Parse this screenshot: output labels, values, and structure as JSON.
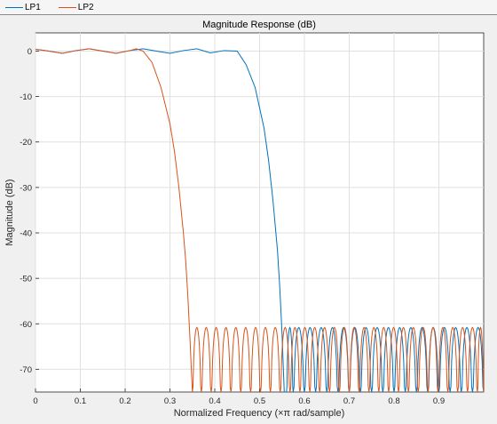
{
  "legend": {
    "items": [
      {
        "label": "LP1",
        "color": "#0072BD"
      },
      {
        "label": "LP2",
        "color": "#D95319"
      }
    ]
  },
  "chart_data": {
    "type": "line",
    "title": "Magnitude Response (dB)",
    "xlabel": "Normalized Frequency (×π rad/sample)",
    "ylabel": "Magnitude (dB)",
    "xlim": [
      0,
      1
    ],
    "ylim": [
      -75,
      4
    ],
    "xticks": [
      0,
      0.1,
      0.2,
      0.3,
      0.4,
      0.5,
      0.6,
      0.7,
      0.8,
      0.9
    ],
    "xtick_labels": [
      "0",
      "0.1",
      "0.2",
      "0.3",
      "0.4",
      "0.5",
      "0.6",
      "0.7",
      "0.8",
      "0.9"
    ],
    "yticks": [
      0,
      -10,
      -20,
      -30,
      -40,
      -50,
      -60,
      -70
    ],
    "ytick_labels": [
      "0",
      "-10",
      "-20",
      "-30",
      "-40",
      "-50",
      "-60",
      "-70"
    ],
    "grid": true,
    "series": [
      {
        "name": "LP1",
        "color": "#0072BD",
        "x": [
          0,
          0.03,
          0.06,
          0.09,
          0.12,
          0.15,
          0.18,
          0.21,
          0.24,
          0.27,
          0.3,
          0.33,
          0.36,
          0.39,
          0.42,
          0.45,
          0.47,
          0.49,
          0.51,
          0.52,
          0.53,
          0.54,
          0.545,
          0.55,
          0.555
        ],
        "y": [
          0.4,
          0.0,
          -0.5,
          0.1,
          0.5,
          0.0,
          -0.5,
          0.1,
          0.5,
          0.0,
          -0.5,
          0.1,
          0.5,
          -0.4,
          0.1,
          0.0,
          -3,
          -8,
          -17,
          -24,
          -33,
          -44,
          -52,
          -62,
          -75
        ]
      },
      {
        "name": "LP2",
        "color": "#D95319",
        "x": [
          0,
          0.03,
          0.06,
          0.09,
          0.12,
          0.15,
          0.18,
          0.21,
          0.225,
          0.24,
          0.26,
          0.28,
          0.3,
          0.31,
          0.32,
          0.33,
          0.335,
          0.34,
          0.345,
          0.35
        ],
        "y": [
          0.4,
          0.0,
          -0.5,
          0.1,
          0.5,
          0.0,
          -0.5,
          0.1,
          0.5,
          0.0,
          -2.5,
          -8,
          -16,
          -22,
          -30,
          -40,
          -46,
          -54,
          -64,
          -75
        ]
      }
    ],
    "stopband": {
      "level_db": -60.8,
      "LP1": {
        "start": 0.55,
        "nulls": [
          0.56,
          0.575,
          0.6,
          0.625,
          0.65,
          0.675,
          0.7,
          0.725,
          0.75,
          0.775,
          0.8,
          0.825,
          0.85,
          0.875,
          0.9,
          0.925,
          0.95,
          0.975
        ]
      },
      "LP2": {
        "start": 0.35,
        "nulls": [
          0.35,
          0.37,
          0.392,
          0.414,
          0.436,
          0.458,
          0.48,
          0.502,
          0.524,
          0.546,
          0.568,
          0.59,
          0.612,
          0.634,
          0.656,
          0.678,
          0.7,
          0.722,
          0.744,
          0.766,
          0.788,
          0.81,
          0.832,
          0.854,
          0.876,
          0.898,
          0.92,
          0.942,
          0.964,
          0.986
        ]
      }
    }
  }
}
